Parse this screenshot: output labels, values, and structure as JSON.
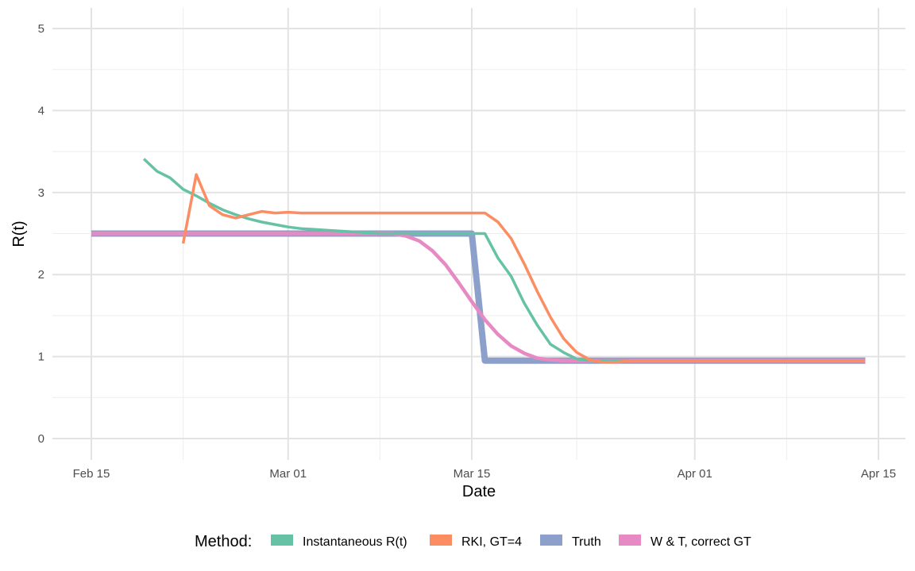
{
  "chart_data": {
    "type": "line",
    "xlabel": "Date",
    "ylabel": "R(t)",
    "x_type": "date",
    "xlim": [
      "2020-02-15",
      "2020-04-15"
    ],
    "ylim": [
      0,
      5
    ],
    "grid": true,
    "x_ticks": [
      {
        "date": "2020-02-15",
        "label": "Feb 15"
      },
      {
        "date": "2020-03-01",
        "label": "Mar 01"
      },
      {
        "date": "2020-03-15",
        "label": "Mar 15"
      },
      {
        "date": "2020-04-01",
        "label": "Apr 01"
      },
      {
        "date": "2020-04-15",
        "label": "Apr 15"
      }
    ],
    "x_minor_ticks": [
      "2020-02-22",
      "2020-03-08",
      "2020-03-23",
      "2020-04-08"
    ],
    "y_ticks": [
      0,
      1,
      2,
      3,
      4,
      5
    ],
    "legend": {
      "title": "Method:",
      "position": "bottom"
    },
    "series": [
      {
        "name": "Truth",
        "color": "#8DA0CB",
        "data": [
          [
            "2020-02-15",
            2.5
          ],
          [
            "2020-03-15",
            2.5
          ],
          [
            "2020-03-16",
            0.95
          ],
          [
            "2020-04-14",
            0.95
          ]
        ]
      },
      {
        "name": "W & T, correct GT",
        "color": "#E78AC3",
        "data": [
          [
            "2020-02-15",
            2.5
          ],
          [
            "2020-03-09",
            2.5
          ],
          [
            "2020-03-10",
            2.47
          ],
          [
            "2020-03-11",
            2.41
          ],
          [
            "2020-03-12",
            2.29
          ],
          [
            "2020-03-13",
            2.12
          ],
          [
            "2020-03-14",
            1.9
          ],
          [
            "2020-03-15",
            1.67
          ],
          [
            "2020-03-16",
            1.45
          ],
          [
            "2020-03-17",
            1.27
          ],
          [
            "2020-03-18",
            1.13
          ],
          [
            "2020-03-19",
            1.04
          ],
          [
            "2020-03-20",
            0.98
          ],
          [
            "2020-03-21",
            0.96
          ],
          [
            "2020-03-22",
            0.95
          ],
          [
            "2020-04-14",
            0.95
          ]
        ]
      },
      {
        "name": "Instantaneous R(t)",
        "color": "#66C2A5",
        "data": [
          [
            "2020-02-19",
            3.41
          ],
          [
            "2020-02-20",
            3.26
          ],
          [
            "2020-02-21",
            3.18
          ],
          [
            "2020-02-22",
            3.04
          ],
          [
            "2020-02-23",
            2.96
          ],
          [
            "2020-02-24",
            2.87
          ],
          [
            "2020-02-25",
            2.79
          ],
          [
            "2020-02-26",
            2.73
          ],
          [
            "2020-02-27",
            2.68
          ],
          [
            "2020-02-28",
            2.64
          ],
          [
            "2020-02-29",
            2.61
          ],
          [
            "2020-03-01",
            2.58
          ],
          [
            "2020-03-02",
            2.56
          ],
          [
            "2020-03-03",
            2.55
          ],
          [
            "2020-03-04",
            2.54
          ],
          [
            "2020-03-05",
            2.53
          ],
          [
            "2020-03-06",
            2.52
          ],
          [
            "2020-03-07",
            2.51
          ],
          [
            "2020-03-08",
            2.5
          ],
          [
            "2020-03-16",
            2.5
          ],
          [
            "2020-03-17",
            2.2
          ],
          [
            "2020-03-18",
            1.98
          ],
          [
            "2020-03-19",
            1.65
          ],
          [
            "2020-03-20",
            1.38
          ],
          [
            "2020-03-21",
            1.15
          ],
          [
            "2020-03-22",
            1.05
          ],
          [
            "2020-03-23",
            0.97
          ],
          [
            "2020-03-24",
            0.95
          ],
          [
            "2020-04-14",
            0.95
          ]
        ]
      },
      {
        "name": "RKI, GT=4",
        "color": "#FC8D62",
        "data": [
          [
            "2020-02-22",
            2.38
          ],
          [
            "2020-02-23",
            3.22
          ],
          [
            "2020-02-24",
            2.84
          ],
          [
            "2020-02-25",
            2.73
          ],
          [
            "2020-02-26",
            2.69
          ],
          [
            "2020-02-27",
            2.73
          ],
          [
            "2020-02-28",
            2.77
          ],
          [
            "2020-02-29",
            2.75
          ],
          [
            "2020-03-01",
            2.76
          ],
          [
            "2020-03-02",
            2.75
          ],
          [
            "2020-03-04",
            2.75
          ],
          [
            "2020-03-16",
            2.75
          ],
          [
            "2020-03-17",
            2.64
          ],
          [
            "2020-03-18",
            2.44
          ],
          [
            "2020-03-19",
            2.13
          ],
          [
            "2020-03-20",
            1.79
          ],
          [
            "2020-03-21",
            1.48
          ],
          [
            "2020-03-22",
            1.22
          ],
          [
            "2020-03-23",
            1.05
          ],
          [
            "2020-03-24",
            0.96
          ],
          [
            "2020-03-25",
            0.93
          ],
          [
            "2020-03-26",
            0.93
          ],
          [
            "2020-03-27",
            0.95
          ],
          [
            "2020-04-14",
            0.95
          ]
        ]
      }
    ]
  },
  "legend_items": [
    {
      "label": "Instantaneous R(t)",
      "color": "#66C2A5"
    },
    {
      "label": "RKI, GT=4",
      "color": "#FC8D62"
    },
    {
      "label": "Truth",
      "color": "#8DA0CB"
    },
    {
      "label": "W & T, correct GT",
      "color": "#E78AC3"
    }
  ]
}
